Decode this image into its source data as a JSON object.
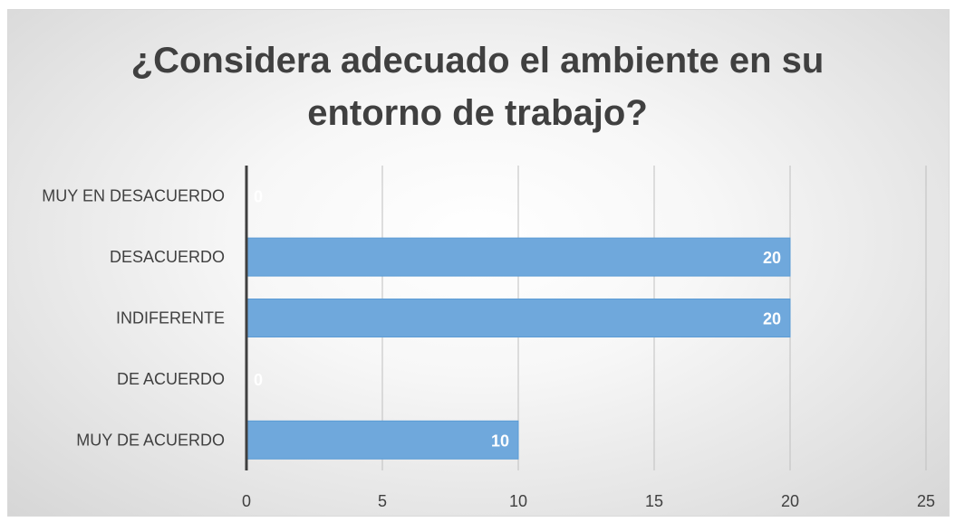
{
  "chart_data": {
    "type": "bar",
    "orientation": "horizontal",
    "title_lines": [
      "¿Considera adecuado el ambiente en su",
      "entorno de trabajo?"
    ],
    "categories": [
      "MUY EN DESACUERDO",
      "DESACUERDO",
      "INDIFERENTE",
      "DE ACUERDO",
      "MUY DE ACUERDO"
    ],
    "values": [
      0,
      20,
      20,
      0,
      10
    ],
    "data_labels": [
      "0",
      "20",
      "20",
      "0",
      "10"
    ],
    "xlim": [
      0,
      25
    ],
    "x_ticks": [
      0,
      5,
      10,
      15,
      20,
      25
    ],
    "grid": true,
    "legend": "none",
    "colors": {
      "bar": "#6fa8dc",
      "bar_stroke": "#5b9bd5",
      "gridline": "#bfbfbf",
      "axis": "#404040",
      "text": "#404040",
      "data_label": "#ffffff"
    }
  }
}
